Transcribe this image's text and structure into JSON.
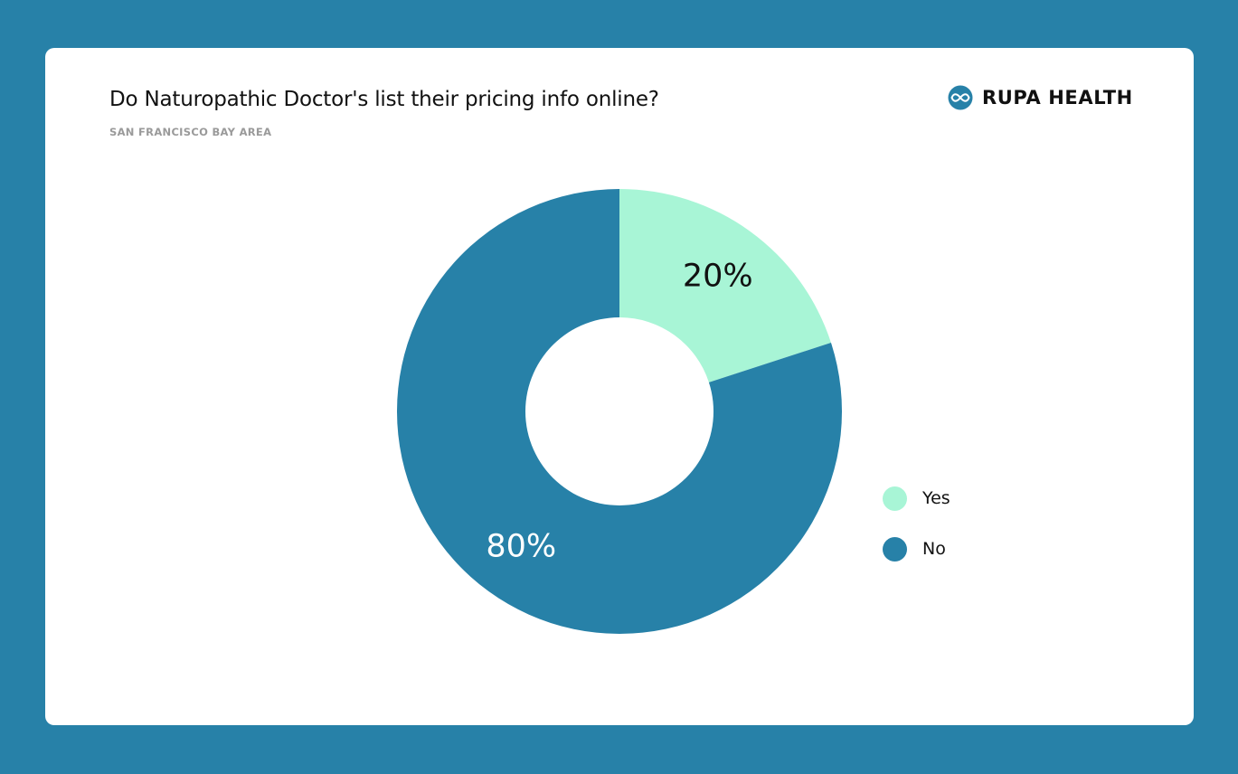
{
  "header": {
    "title": "Do Naturopathic Doctor's list their pricing info online?",
    "subtitle": "SAN FRANCISCO BAY AREA"
  },
  "brand": {
    "name": "RUPA HEALTH",
    "icon": "infinity-logo-icon",
    "color": "#2781a8"
  },
  "colors": {
    "background": "#2781a8",
    "card": "#ffffff"
  },
  "chart_data": {
    "type": "pie",
    "variant": "donut",
    "title": "Do Naturopathic Doctor's list their pricing info online?",
    "subtitle": "SAN FRANCISCO BAY AREA",
    "categories": [
      "Yes",
      "No"
    ],
    "values": [
      20,
      80
    ],
    "labels": [
      "20%",
      "80%"
    ],
    "colors": [
      "#a8f5d6",
      "#2781a8"
    ],
    "label_colors": [
      "#111111",
      "#ffffff"
    ],
    "legend_position": "right"
  }
}
